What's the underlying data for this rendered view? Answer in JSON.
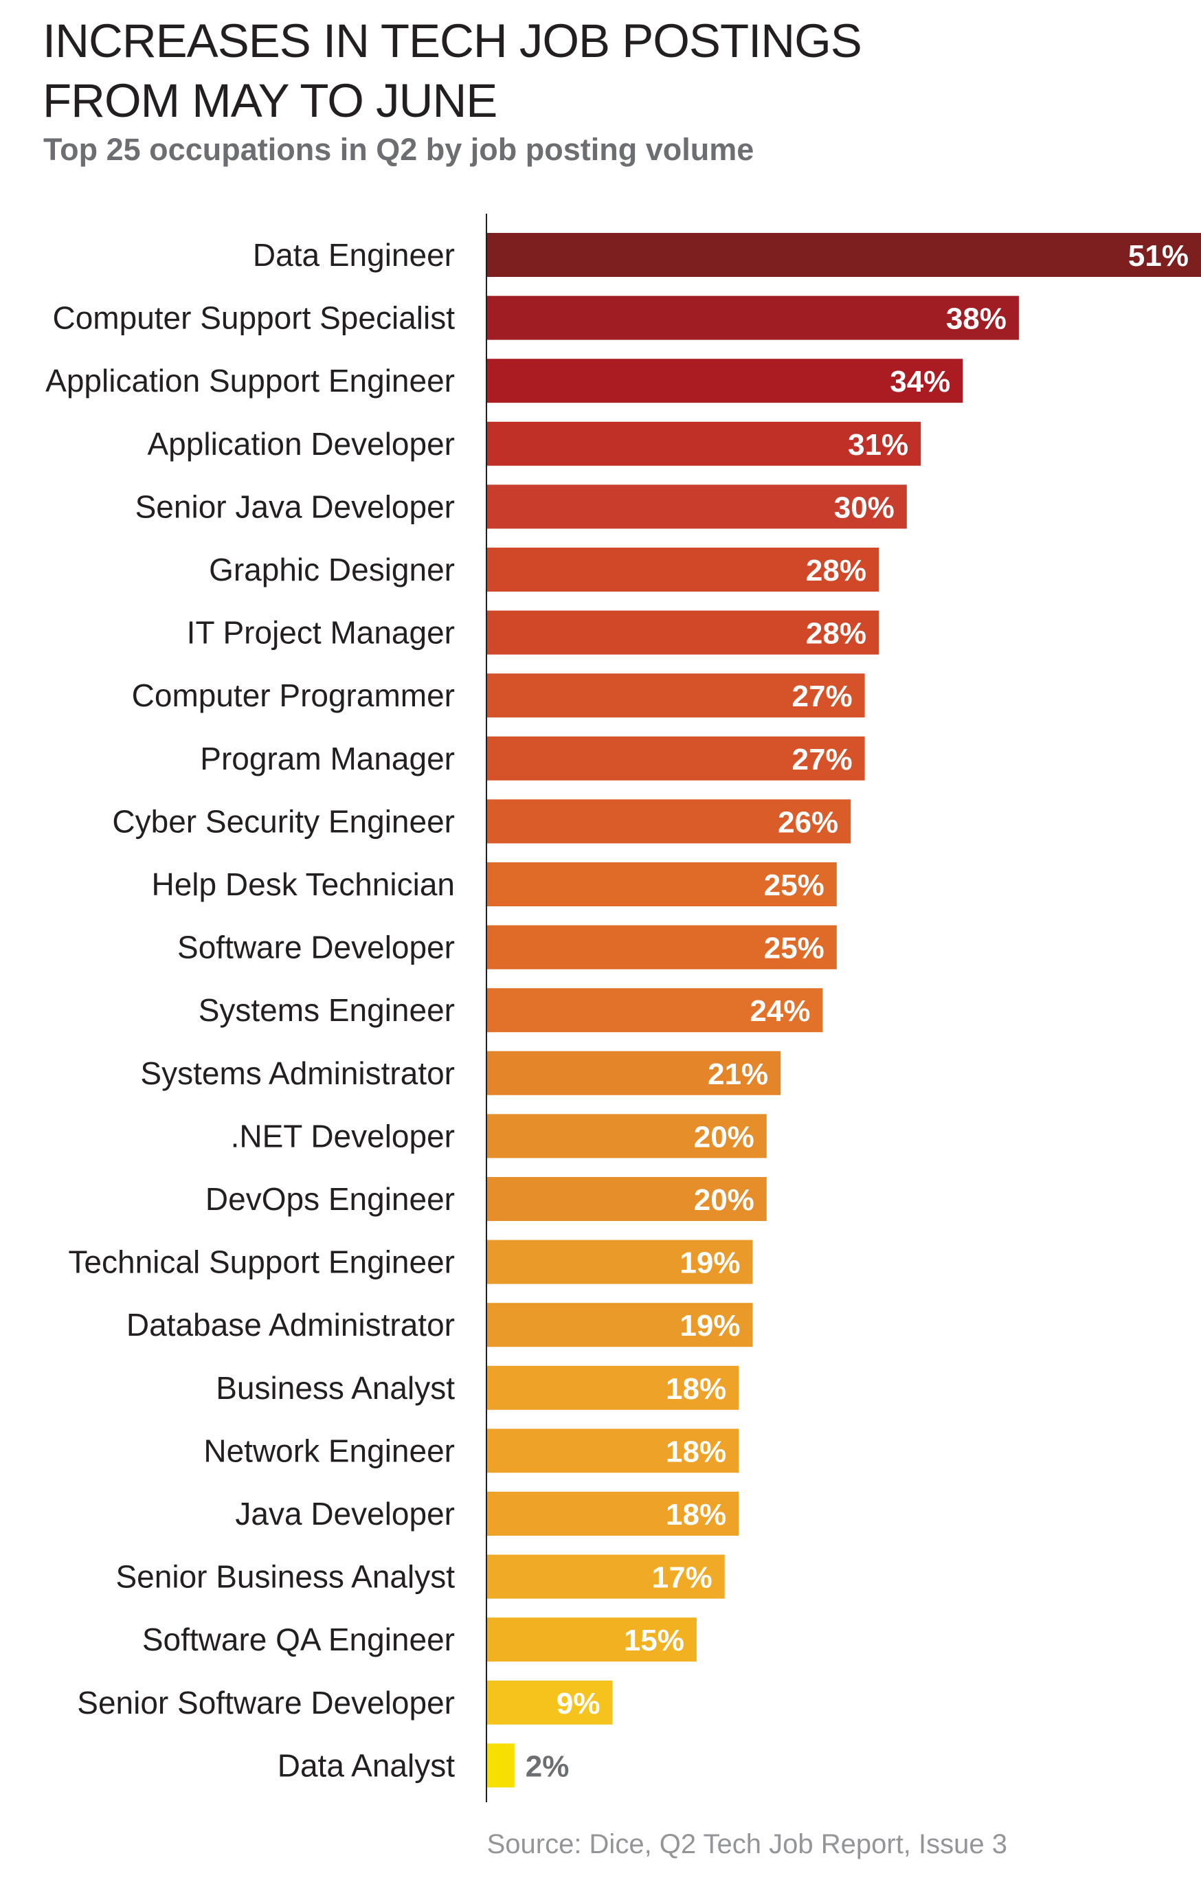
{
  "title_line1": "INCREASES IN TECH JOB POSTINGS",
  "title_line2": "FROM MAY TO JUNE",
  "subtitle": "Top 25 occupations in Q2 by job posting volume",
  "source": "Source: Dice, Q2 Tech Job Report, Issue 3",
  "colors": {
    "text": "#231f20",
    "subtitle": "#6d6e71",
    "source": "#939598",
    "axis": "#231f20",
    "value_inside": "#ffffff",
    "value_outside": "#6d6e71"
  },
  "chart_data": {
    "type": "bar",
    "orientation": "horizontal",
    "title": "INCREASES IN TECH JOB POSTINGS FROM MAY TO JUNE",
    "subtitle": "Top 25 occupations in Q2 by job posting volume",
    "xlabel": "",
    "ylabel": "",
    "value_suffix": "%",
    "xlim": [
      0,
      51
    ],
    "grid": false,
    "legend": "none",
    "categories": [
      "Data Engineer",
      "Computer Support Specialist",
      "Application Support Engineer",
      "Application Developer",
      "Senior Java Developer",
      "Graphic Designer",
      "IT Project Manager",
      "Computer Programmer",
      "Program Manager",
      "Cyber Security Engineer",
      "Help Desk Technician",
      "Software Developer",
      "Systems Engineer",
      "Systems Administrator",
      ".NET Developer",
      "DevOps Engineer",
      "Technical Support Engineer",
      "Database Administrator",
      "Business Analyst",
      "Network Engineer",
      "Java Developer",
      "Senior Business Analyst",
      "Software QA Engineer",
      "Senior Software Developer",
      "Data Analyst"
    ],
    "values": [
      51,
      38,
      34,
      31,
      30,
      28,
      28,
      27,
      27,
      26,
      25,
      25,
      24,
      21,
      20,
      20,
      19,
      19,
      18,
      18,
      18,
      17,
      15,
      9,
      2
    ],
    "value_labels": [
      "51%",
      "38%",
      "34%",
      "31%",
      "30%",
      "28%",
      "28%",
      "27%",
      "27%",
      "26%",
      "25%",
      "25%",
      "24%",
      "21%",
      "20%",
      "20%",
      "19%",
      "19%",
      "18%",
      "18%",
      "18%",
      "17%",
      "15%",
      "9%",
      "2%"
    ],
    "bar_colors": [
      "#7e1f1f",
      "#9f1d23",
      "#aa1c22",
      "#c03027",
      "#c83d2b",
      "#d04828",
      "#d04828",
      "#d65329",
      "#d65329",
      "#da5c29",
      "#e06b29",
      "#e06b29",
      "#e2722a",
      "#e5852a",
      "#e68e2a",
      "#e68e2a",
      "#ea9a28",
      "#ea9a28",
      "#efa228",
      "#efa228",
      "#efa228",
      "#f0aa26",
      "#f2b120",
      "#f5c31b",
      "#f7e000"
    ]
  }
}
